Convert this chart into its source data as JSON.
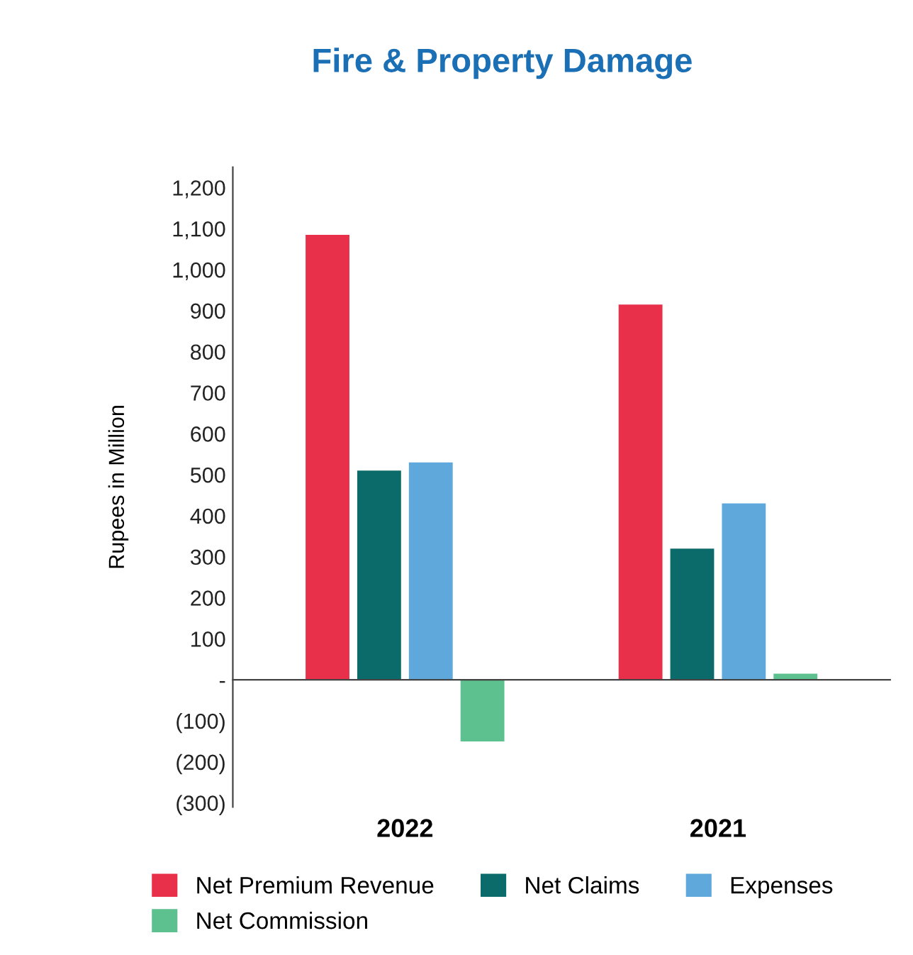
{
  "chart_data": {
    "type": "bar",
    "title": "Fire & Property Damage",
    "ylabel": "Rupees in Million",
    "categories": [
      "2022",
      "2021"
    ],
    "series": [
      {
        "name": "Net Premium Revenue",
        "color": "#e8304a",
        "values": [
          1085,
          915
        ]
      },
      {
        "name": "Net Claims",
        "color": "#0b6b6b",
        "values": [
          510,
          320
        ]
      },
      {
        "name": "Expenses",
        "color": "#5fa8dc",
        "values": [
          530,
          430
        ]
      },
      {
        "name": "Net Commission",
        "color": "#5cc08f",
        "values": [
          -150,
          15
        ]
      }
    ],
    "ylim": [
      -310,
      1250
    ],
    "yticks": [
      {
        "value": -300,
        "label": "(300)"
      },
      {
        "value": -200,
        "label": "(200)"
      },
      {
        "value": -100,
        "label": "(100)"
      },
      {
        "value": 0,
        "label": "-"
      },
      {
        "value": 100,
        "label": "100"
      },
      {
        "value": 200,
        "label": "200"
      },
      {
        "value": 300,
        "label": "300"
      },
      {
        "value": 400,
        "label": "400"
      },
      {
        "value": 500,
        "label": "500"
      },
      {
        "value": 600,
        "label": "600"
      },
      {
        "value": 700,
        "label": "700"
      },
      {
        "value": 800,
        "label": "800"
      },
      {
        "value": 900,
        "label": "900"
      },
      {
        "value": 1000,
        "label": "1,000"
      },
      {
        "value": 1100,
        "label": "1,100"
      },
      {
        "value": 1200,
        "label": "1,200"
      }
    ],
    "legend": "bottom"
  }
}
